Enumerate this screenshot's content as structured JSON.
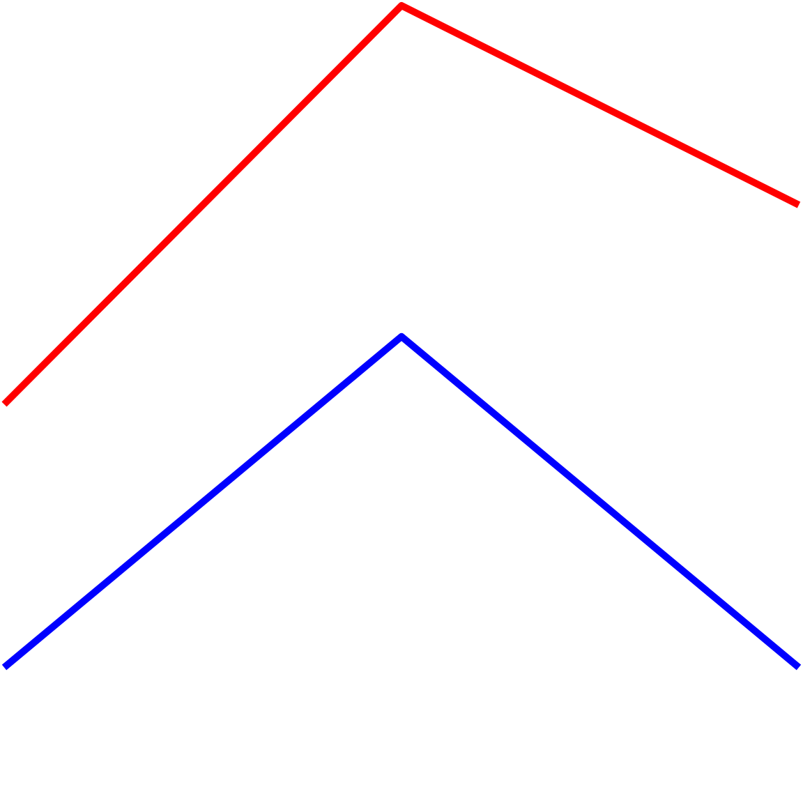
{
  "chart_data": {
    "type": "line",
    "title": "",
    "xlabel": "",
    "ylabel": "",
    "grid": false,
    "axes_visible": false,
    "xlim": [
      0,
      2
    ],
    "ylim": [
      0,
      2
    ],
    "categories": [
      0,
      1,
      2
    ],
    "series": [
      {
        "name": "red",
        "color": "#ff0000",
        "x": [
          0,
          1,
          2
        ],
        "y": [
          1,
          2,
          1.5
        ]
      },
      {
        "name": "blue",
        "color": "#0000ff",
        "x": [
          0,
          1,
          2
        ],
        "y": [
          0.34,
          1.17,
          0.34
        ]
      }
    ]
  }
}
